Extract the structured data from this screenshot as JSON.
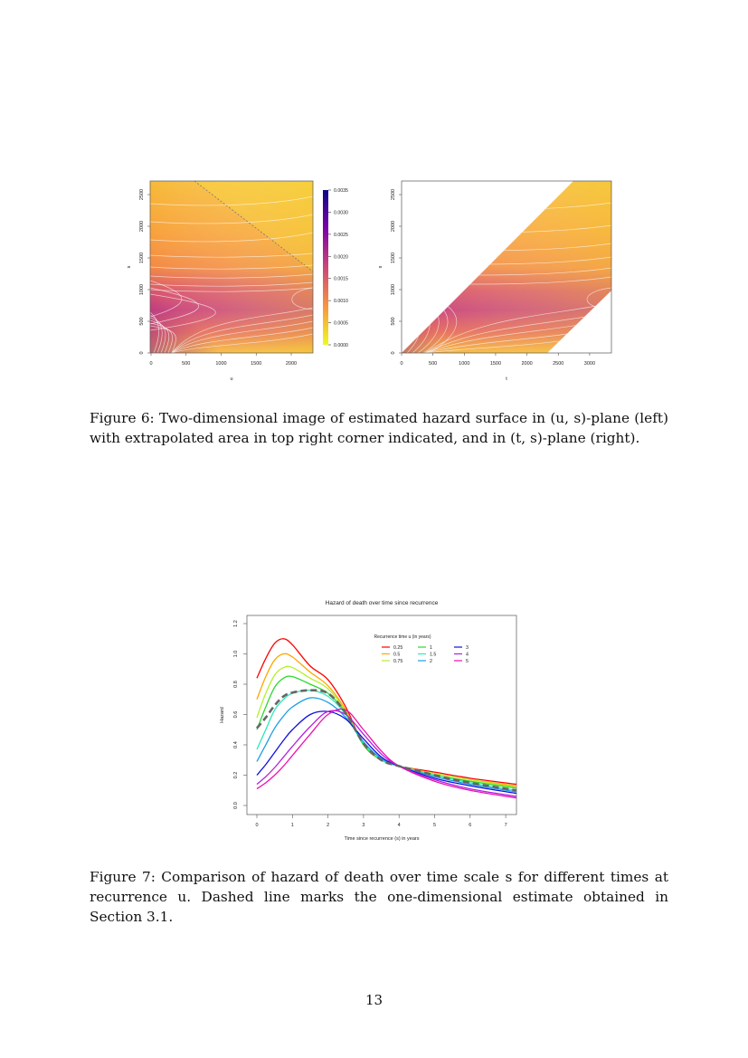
{
  "figure6": {
    "caption": "Figure 6: Two-dimensional image of estimated hazard surface in (u, s)-plane (left) with extrapolated area in top right corner indicated, and in (t, s)-plane (right).",
    "chart_data": [
      {
        "type": "heatmap",
        "xlabel": "u",
        "ylabel": "s",
        "xticks": [
          "0",
          "500",
          "1000",
          "1500",
          "2000"
        ],
        "yticks": [
          "0",
          "500",
          "1000",
          "1500",
          "2000",
          "2500"
        ],
        "xlim": [
          0,
          2300
        ],
        "ylim": [
          0,
          2700
        ],
        "colorbar": {
          "ticks": [
            "0.0000",
            "0.0005",
            "0.0010",
            "0.0015",
            "0.0020",
            "0.0025",
            "0.0030",
            "0.0035"
          ],
          "range": [
            0,
            0.0035
          ],
          "colors": [
            "#f0f921",
            "#f89540",
            "#cc4778",
            "#7e03a8",
            "#0d0887"
          ]
        },
        "extrapolated_region": "top-right, above dashed diagonal line"
      },
      {
        "type": "heatmap",
        "xlabel": "t",
        "ylabel": "s",
        "xticks": [
          "0",
          "500",
          "1000",
          "1500",
          "2000",
          "2500",
          "3000"
        ],
        "yticks": [
          "0",
          "500",
          "1000",
          "1500",
          "2000",
          "2500"
        ],
        "xlim": [
          0,
          3300
        ],
        "ylim": [
          0,
          2700
        ]
      }
    ]
  },
  "figure7": {
    "caption": "Figure 7: Comparison of hazard of death over time scale s for different times at recurrence u. Dashed line marks the one-dimensional estimate obtained in Section 3.1.",
    "chart_data": {
      "type": "line",
      "title": "Hazard of death over time since recurrence",
      "xlabel": "Time since recurrence (s) in years",
      "ylabel": "Hazard",
      "xlim": [
        -0.3,
        7.3
      ],
      "ylim": [
        -0.05,
        1.25
      ],
      "xticks": [
        "0",
        "1",
        "2",
        "3",
        "4",
        "5",
        "6",
        "7"
      ],
      "yticks": [
        "0.0",
        "0.2",
        "0.4",
        "0.6",
        "0.8",
        "1.0",
        "1.2"
      ],
      "legend_title": "Recurrence time u (in years)",
      "legend_position": "top-right",
      "x": [
        0,
        0.25,
        0.5,
        0.75,
        1,
        1.5,
        2,
        2.5,
        3,
        3.5,
        4,
        5,
        6,
        7.3
      ],
      "series": [
        {
          "name": "0.25",
          "color": "#ff0000",
          "values": [
            0.84,
            0.97,
            1.07,
            1.1,
            1.06,
            0.92,
            0.83,
            0.65,
            0.4,
            0.3,
            0.26,
            0.22,
            0.18,
            0.14
          ]
        },
        {
          "name": "0.5",
          "color": "#ffa500",
          "values": [
            0.7,
            0.85,
            0.96,
            1.0,
            0.98,
            0.88,
            0.79,
            0.63,
            0.4,
            0.3,
            0.26,
            0.21,
            0.17,
            0.13
          ]
        },
        {
          "name": "0.75",
          "color": "#b4f02a",
          "values": [
            0.58,
            0.74,
            0.86,
            0.91,
            0.91,
            0.84,
            0.77,
            0.62,
            0.4,
            0.3,
            0.26,
            0.21,
            0.17,
            0.12
          ]
        },
        {
          "name": "1",
          "color": "#2fd82f",
          "values": [
            0.5,
            0.65,
            0.78,
            0.84,
            0.85,
            0.8,
            0.74,
            0.61,
            0.4,
            0.3,
            0.26,
            0.2,
            0.16,
            0.115
          ]
        },
        {
          "name": "1.5",
          "color": "#2ee8b8",
          "values": [
            0.37,
            0.5,
            0.63,
            0.7,
            0.74,
            0.76,
            0.72,
            0.6,
            0.41,
            0.3,
            0.26,
            0.2,
            0.15,
            0.1
          ]
        },
        {
          "name": "2",
          "color": "#1e9fe0",
          "values": [
            0.29,
            0.4,
            0.51,
            0.59,
            0.65,
            0.71,
            0.68,
            0.58,
            0.42,
            0.31,
            0.26,
            0.19,
            0.14,
            0.09
          ]
        },
        {
          "name": "3",
          "color": "#1010e0",
          "values": [
            0.2,
            0.27,
            0.35,
            0.43,
            0.5,
            0.6,
            0.62,
            0.57,
            0.44,
            0.32,
            0.26,
            0.18,
            0.13,
            0.08
          ]
        },
        {
          "name": "4",
          "color": "#b020e0",
          "values": [
            0.14,
            0.19,
            0.25,
            0.32,
            0.39,
            0.52,
            0.62,
            0.6,
            0.47,
            0.34,
            0.26,
            0.17,
            0.11,
            0.06
          ]
        },
        {
          "name": "5",
          "color": "#ee10b0",
          "values": [
            0.11,
            0.15,
            0.2,
            0.26,
            0.33,
            0.47,
            0.6,
            0.63,
            0.5,
            0.36,
            0.26,
            0.16,
            0.1,
            0.05
          ]
        }
      ],
      "reference": {
        "style": "dashed",
        "color": "#666666",
        "values": [
          0.51,
          0.58,
          0.66,
          0.72,
          0.745,
          0.76,
          0.74,
          0.61,
          0.41,
          0.3,
          0.26,
          0.2,
          0.15,
          0.1
        ]
      }
    }
  },
  "page_number": "13"
}
